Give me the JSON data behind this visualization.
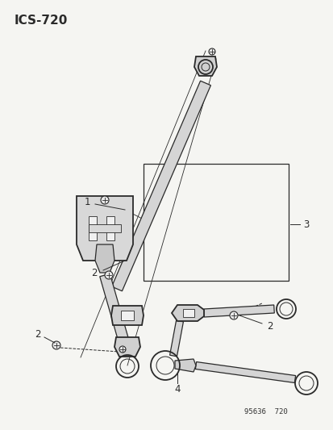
{
  "title": "ICS-720",
  "bg_color": "#f5f5f2",
  "line_color": "#2a2a2a",
  "footer_text": "95636  720",
  "figsize": [
    4.14,
    5.33
  ],
  "dpi": 100
}
